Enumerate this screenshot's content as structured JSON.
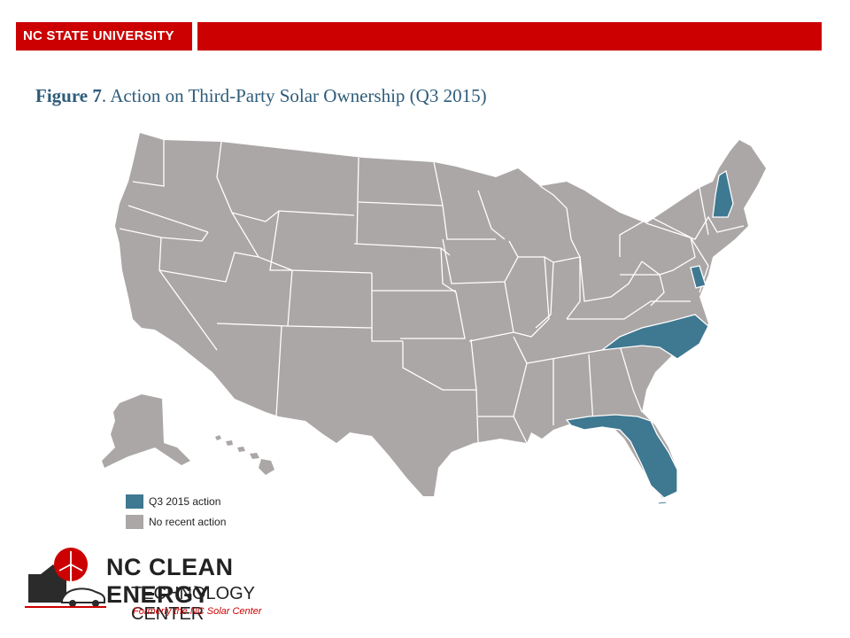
{
  "header": {
    "brand": "NC STATE UNIVERSITY",
    "accent_color": "#cc0000"
  },
  "title": {
    "figure_label": "Figure 7",
    "text": ". Action on Third-Party Solar Ownership (Q3 2015)"
  },
  "map": {
    "region": "United States",
    "highlighted_states": [
      "New Hampshire",
      "Delaware",
      "North Carolina",
      "Florida"
    ],
    "highlight_color": "#3f7891",
    "default_color": "#aba7a6"
  },
  "legend": {
    "items": [
      {
        "label": "Q3 2015 action",
        "color": "#3f7891"
      },
      {
        "label": "No recent action",
        "color": "#aba7a6"
      }
    ]
  },
  "logo": {
    "line1": "NC CLEAN ENERGY",
    "line2": "TECHNOLOGY CENTER",
    "line3": "Formerly the NC Solar Center",
    "icons": [
      "building-icon",
      "wind-turbine-icon",
      "car-icon"
    ]
  }
}
